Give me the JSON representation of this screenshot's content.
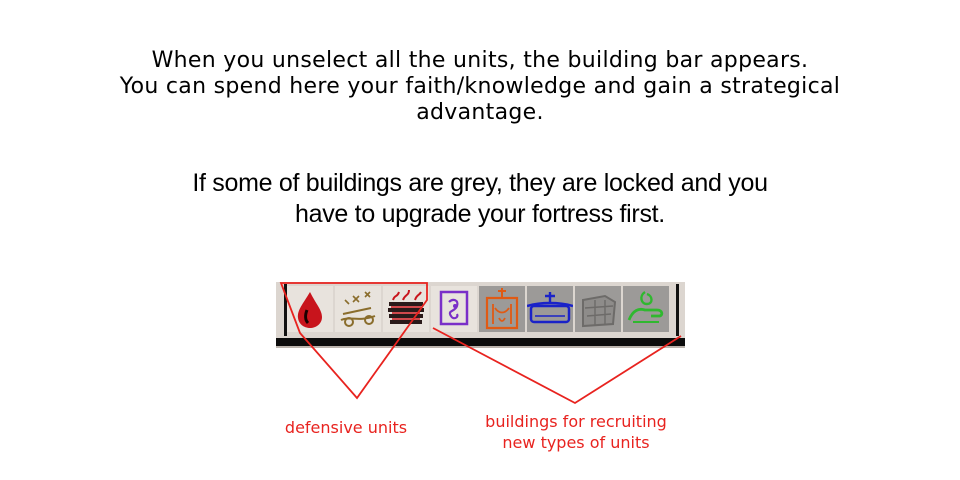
{
  "intro": {
    "line1": "When you unselect all the units, the building bar appears.",
    "line2": "You can spend here your faith/knowledge and gain a strategical",
    "line3": "advantage."
  },
  "locked_note": {
    "line1": "If some of buildings are grey, they are locked and you",
    "line2": "have to upgrade your fortress first."
  },
  "building_bar": {
    "slots": [
      {
        "icon": "blood-drop-icon",
        "color": "#c8141c",
        "locked": false
      },
      {
        "icon": "ballista-icon",
        "color": "#8a6d2c",
        "locked": false
      },
      {
        "icon": "burning-barricade-icon",
        "color": "#2a1a1a",
        "locked": false
      },
      {
        "icon": "scroll-shrine-icon",
        "color": "#7a2fc8",
        "locked": false
      },
      {
        "icon": "orange-temple-icon",
        "color": "#e05a14",
        "locked": true
      },
      {
        "icon": "blue-altar-icon",
        "color": "#1a22c8",
        "locked": true
      },
      {
        "icon": "stone-block-icon",
        "color": "#6d6b69",
        "locked": true
      },
      {
        "icon": "green-hand-icon",
        "color": "#2fb82f",
        "locked": true
      }
    ]
  },
  "annotations": {
    "defensive_label": "defensive units",
    "buildings_label_line1": "buildings for recruiting",
    "buildings_label_line2": "new types of units",
    "color": "#e8231f"
  }
}
